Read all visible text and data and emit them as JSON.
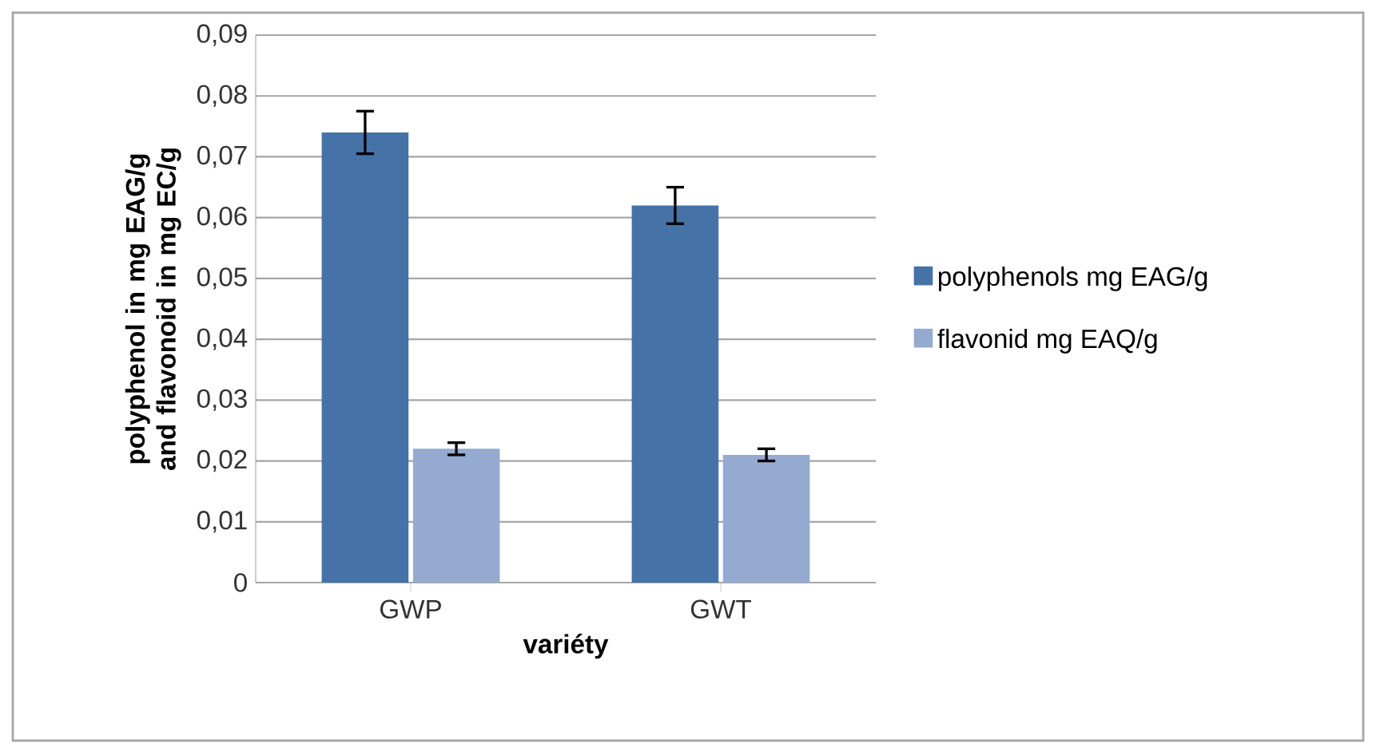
{
  "chart_data": {
    "type": "bar",
    "xlabel": "variéty",
    "ylabel": "polyphenol in mg EAG/g and flavonoid in mg EC/g",
    "categories": [
      "GWP",
      "GWT"
    ],
    "series": [
      {
        "name": "polyphenols mg EAG/g",
        "color": "#4572a7",
        "values": [
          0.074,
          0.062
        ],
        "errors": [
          0.0035,
          0.003
        ]
      },
      {
        "name": "flavonid mg EAQ/g",
        "color": "#95aad0",
        "values": [
          0.022,
          0.021
        ],
        "errors": [
          0.001,
          0.001
        ]
      }
    ],
    "ylim": [
      0,
      0.09
    ],
    "yticks": [
      {
        "value": 0,
        "label": "0"
      },
      {
        "value": 0.01,
        "label": "0,01"
      },
      {
        "value": 0.02,
        "label": "0,02"
      },
      {
        "value": 0.03,
        "label": "0,03"
      },
      {
        "value": 0.04,
        "label": "0,04"
      },
      {
        "value": 0.05,
        "label": "0,05"
      },
      {
        "value": 0.06,
        "label": "0,06"
      },
      {
        "value": 0.07,
        "label": "0,07"
      },
      {
        "value": 0.08,
        "label": "0,08"
      },
      {
        "value": 0.09,
        "label": "0,09"
      }
    ],
    "grid": "y",
    "legend": "right"
  }
}
